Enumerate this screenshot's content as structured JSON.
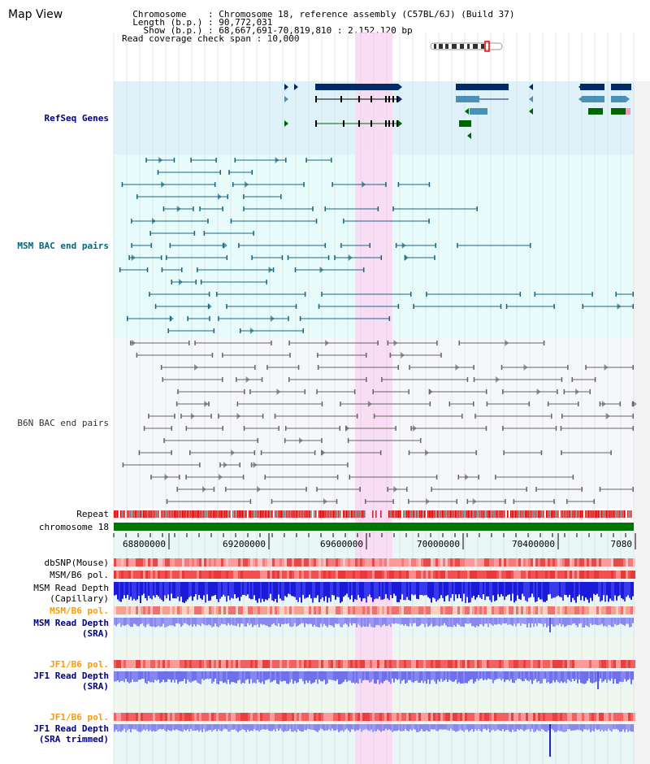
{
  "header": {
    "title": "Map View",
    "chromosome_line": "  Chromosome    : Chromosome 18, reference assembly (C57BL/6J) (Build 37)",
    "length_line": "  Length (b.p.) : 90,772,031",
    "show_line": "    Show (b.p.) : 68,667,691-70,819,810 : 2,152,120 bp",
    "coverage_line": "Read coverage check span : 10,000"
  },
  "tracks": {
    "refseq": "RefSeq Genes",
    "msm_bac": "MSM BAC end pairs",
    "b6n_bac": "B6N BAC end pairs",
    "repeat": "Repeat",
    "chromosome": "chromosome 18",
    "dbsnp": "dbSNP(Mouse)",
    "msm_b6_pol_1": "MSM/B6 pol.",
    "msm_read_depth_cap_1": "MSM Read Depth",
    "msm_read_depth_cap_2": "(Capillary)",
    "msm_b6_pol_2": "MSM/B6 pol.",
    "msm_read_depth_sra_1": "MSM Read Depth",
    "msm_read_depth_sra_2": "(SRA)",
    "jf1_b6_pol_1": "JF1/B6 pol.",
    "jf1_read_depth_sra_1": "JF1 Read Depth",
    "jf1_read_depth_sra_2": "(SRA)",
    "jf1_b6_pol_2": "JF1/B6 pol.",
    "jf1_read_depth_trim_1": "JF1 Read Depth",
    "jf1_read_depth_trim_2": "(SRA trimmed)"
  },
  "axis": {
    "ticks": [
      "68800000",
      "69200000",
      "69600000",
      "70000000",
      "70400000",
      "7080"
    ]
  },
  "colors": {
    "refseq_bg": "#dff2fa",
    "msm_bg": "#e8fbfb",
    "b6n_bg": "#f5f7fb",
    "highlight": "#f9d9f3",
    "gene_dark": "#002b66",
    "gene_mid": "#4a90b8",
    "gene_green": "#006600",
    "msm_pair": "#1a6680",
    "b6n_pair": "#666666",
    "label_blue": "#000080",
    "label_teal": "#006680",
    "label_orange": "#ff9900",
    "chrom_green": "#007700"
  }
}
